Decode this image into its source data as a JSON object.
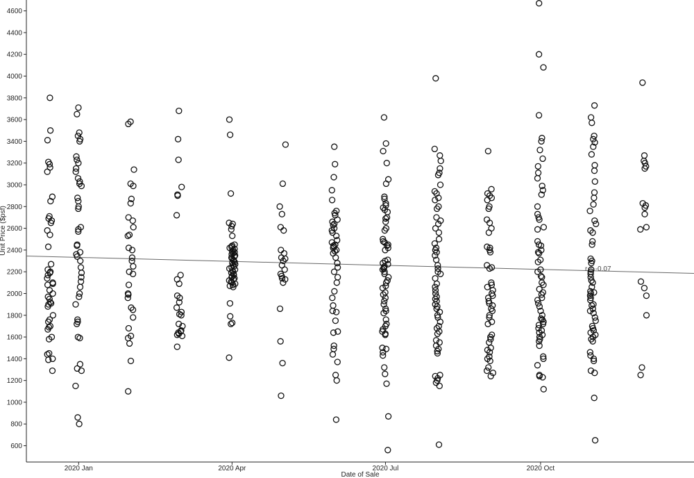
{
  "chart_data": {
    "type": "scatter",
    "xlabel": "Date of Sale",
    "ylabel": "Unit Price ($psf)",
    "x_axis": {
      "type": "date",
      "range": [
        "2019-12-01",
        "2020-12-31"
      ],
      "ticks": [
        {
          "date": "2020-01-01",
          "label": "2020 Jan"
        },
        {
          "date": "2020-04-01",
          "label": "2020 Apr"
        },
        {
          "date": "2020-07-01",
          "label": "2020 Jul"
        },
        {
          "date": "2020-10-01",
          "label": "2020 Oct"
        }
      ]
    },
    "y_axis": {
      "range": [
        450,
        4700
      ],
      "ticks": [
        600,
        800,
        1000,
        1200,
        1400,
        1600,
        1800,
        2000,
        2200,
        2400,
        2600,
        2800,
        3000,
        3200,
        3400,
        3600,
        3800,
        4000,
        4200,
        4400,
        4600
      ]
    },
    "grid": false,
    "regression_line": {
      "start": [
        "2019-12-01",
        2345
      ],
      "end": [
        "2020-12-31",
        2185
      ]
    },
    "annotation": "r = -0.07",
    "months": [
      {
        "date": "2019-12-15",
        "values": [
          3800,
          3500,
          3410,
          3210,
          3190,
          3160,
          3120,
          2890,
          2850,
          2710,
          2690,
          2670,
          2650,
          2580,
          2540,
          2430,
          2270,
          2220,
          2200,
          2190,
          2170,
          2140,
          2100,
          2090,
          2080,
          2030,
          2000,
          1970,
          1950,
          1920,
          1910,
          1900,
          1880,
          1800,
          1760,
          1740,
          1700,
          1690,
          1670,
          1600,
          1580,
          1450,
          1440,
          1400,
          1390,
          1290
        ]
      },
      {
        "date": "2020-01-01",
        "values": [
          3710,
          3650,
          3480,
          3450,
          3420,
          3400,
          3260,
          3230,
          3200,
          3150,
          3120,
          3060,
          3030,
          3010,
          2990,
          2880,
          2850,
          2800,
          2780,
          2610,
          2590,
          2570,
          2450,
          2440,
          2380,
          2360,
          2340,
          2300,
          2240,
          2190,
          2150,
          2110,
          2060,
          2000,
          1970,
          1900,
          1760,
          1740,
          1720,
          1600,
          1590,
          1350,
          1310,
          1290,
          1150,
          860,
          800
        ]
      },
      {
        "date": "2020-02-01",
        "values": [
          3580,
          3560,
          3140,
          3010,
          2990,
          2870,
          2830,
          2700,
          2670,
          2610,
          2540,
          2530,
          2420,
          2400,
          2330,
          2300,
          2250,
          2200,
          2180,
          2080,
          2000,
          1990,
          1960,
          1870,
          1850,
          1780,
          1680,
          1610,
          1590,
          1540,
          1380,
          1100
        ]
      },
      {
        "date": "2020-03-01",
        "values": [
          3680,
          3420,
          3230,
          2980,
          2910,
          2900,
          2720,
          2170,
          2130,
          2090,
          1980,
          1960,
          1920,
          1870,
          1830,
          1810,
          1800,
          1720,
          1700,
          1660,
          1650,
          1640,
          1630,
          1620,
          1610,
          1510
        ]
      },
      {
        "date": "2020-04-01",
        "values": [
          3600,
          3460,
          2920,
          2650,
          2640,
          2620,
          2590,
          2530,
          2450,
          2440,
          2430,
          2420,
          2410,
          2400,
          2390,
          2380,
          2370,
          2360,
          2350,
          2340,
          2330,
          2320,
          2310,
          2300,
          2290,
          2280,
          2270,
          2260,
          2250,
          2240,
          2230,
          2220,
          2210,
          2200,
          2190,
          2180,
          2170,
          2160,
          2150,
          2140,
          2130,
          2120,
          2110,
          2100,
          2090,
          2080,
          2070,
          2060,
          1910,
          1790,
          1730,
          1720,
          1410
        ]
      },
      {
        "date": "2020-05-01",
        "values": [
          3370,
          3010,
          2800,
          2730,
          2610,
          2580,
          2400,
          2370,
          2330,
          2320,
          2300,
          2260,
          2220,
          2180,
          2160,
          2140,
          2130,
          2100,
          1860,
          1560,
          1360,
          1060
        ]
      },
      {
        "date": "2020-06-01",
        "values": [
          3350,
          3190,
          3070,
          2950,
          2860,
          2760,
          2740,
          2720,
          2680,
          2660,
          2640,
          2630,
          2600,
          2580,
          2560,
          2530,
          2490,
          2470,
          2450,
          2440,
          2430,
          2420,
          2400,
          2390,
          2370,
          2330,
          2280,
          2240,
          2200,
          2150,
          2100,
          2020,
          1960,
          1890,
          1840,
          1830,
          1750,
          1650,
          1640,
          1520,
          1490,
          1440,
          1370,
          1250,
          1200,
          840
        ]
      },
      {
        "date": "2020-07-01",
        "values": [
          3620,
          3380,
          3310,
          3200,
          3050,
          3010,
          2890,
          2870,
          2830,
          2810,
          2790,
          2770,
          2750,
          2700,
          2690,
          2660,
          2600,
          2580,
          2500,
          2480,
          2470,
          2450,
          2440,
          2420,
          2400,
          2310,
          2300,
          2280,
          2270,
          2250,
          2240,
          2230,
          2220,
          2200,
          2180,
          2150,
          2120,
          2100,
          2070,
          2050,
          2010,
          1990,
          1960,
          1930,
          1900,
          1860,
          1840,
          1820,
          1760,
          1720,
          1700,
          1670,
          1650,
          1630,
          1620,
          1500,
          1490,
          1460,
          1430,
          1320,
          1260,
          1170,
          870,
          560
        ]
      },
      {
        "date": "2020-08-01",
        "values": [
          3980,
          3330,
          3270,
          3220,
          3150,
          3110,
          3090,
          3000,
          2940,
          2920,
          2880,
          2860,
          2800,
          2780,
          2700,
          2670,
          2640,
          2600,
          2560,
          2500,
          2460,
          2420,
          2400,
          2380,
          2350,
          2310,
          2260,
          2230,
          2200,
          2180,
          2140,
          2090,
          2060,
          2030,
          2000,
          1970,
          1950,
          1930,
          1900,
          1880,
          1860,
          1830,
          1800,
          1780,
          1740,
          1700,
          1680,
          1650,
          1630,
          1570,
          1550,
          1520,
          1490,
          1470,
          1450,
          1250,
          1240,
          1220,
          1200,
          1180,
          1150,
          610
        ]
      },
      {
        "date": "2020-09-01",
        "values": [
          3310,
          2960,
          2920,
          2900,
          2880,
          2860,
          2800,
          2780,
          2680,
          2650,
          2600,
          2560,
          2430,
          2420,
          2400,
          2380,
          2260,
          2240,
          2230,
          2100,
          2080,
          2060,
          2030,
          2000,
          1980,
          1960,
          1930,
          1910,
          1890,
          1860,
          1840,
          1800,
          1780,
          1740,
          1720,
          1620,
          1600,
          1580,
          1550,
          1500,
          1480,
          1460,
          1420,
          1400,
          1380,
          1320,
          1290,
          1270,
          1240
        ]
      },
      {
        "date": "2020-10-01",
        "values": [
          4670,
          4200,
          4080,
          3640,
          3430,
          3400,
          3320,
          3240,
          3170,
          3110,
          3060,
          2990,
          2950,
          2910,
          2800,
          2730,
          2700,
          2680,
          2610,
          2590,
          2480,
          2450,
          2440,
          2400,
          2380,
          2370,
          2310,
          2290,
          2220,
          2200,
          2160,
          2150,
          2100,
          2080,
          2040,
          2010,
          1990,
          1960,
          1940,
          1910,
          1880,
          1840,
          1800,
          1770,
          1760,
          1740,
          1720,
          1710,
          1680,
          1660,
          1640,
          1620,
          1600,
          1580,
          1560,
          1520,
          1420,
          1400,
          1340,
          1250,
          1240,
          1230,
          1120
        ]
      },
      {
        "date": "2020-11-01",
        "values": [
          3730,
          3620,
          3570,
          3450,
          3420,
          3390,
          3350,
          3280,
          3180,
          3130,
          3030,
          2930,
          2880,
          2820,
          2760,
          2670,
          2640,
          2580,
          2560,
          2480,
          2450,
          2320,
          2300,
          2280,
          2220,
          2200,
          2180,
          2150,
          2120,
          2100,
          2060,
          2020,
          2010,
          2000,
          1980,
          1960,
          1940,
          1900,
          1890,
          1860,
          1840,
          1820,
          1780,
          1750,
          1700,
          1680,
          1660,
          1640,
          1620,
          1600,
          1580,
          1560,
          1460,
          1430,
          1400,
          1380,
          1290,
          1270,
          1040,
          650
        ]
      },
      {
        "date": "2020-12-01",
        "values": [
          3940,
          3270,
          3220,
          3200,
          3170,
          3150,
          2830,
          2810,
          2790,
          2730,
          2610,
          2590,
          2110,
          2050,
          1980,
          1800,
          1320,
          1250
        ]
      }
    ]
  }
}
